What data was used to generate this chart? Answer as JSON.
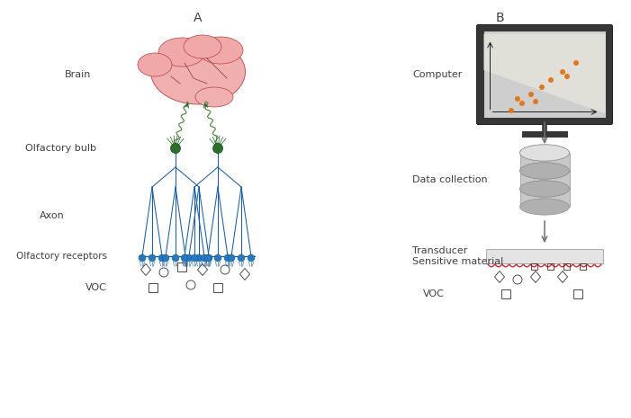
{
  "title_A": "A",
  "title_B": "B",
  "label_brain": "Brain",
  "label_olfactory_bulb": "Olfactory bulb",
  "label_axon": "Axon",
  "label_olfactory_receptors": "Olfactory receptors",
  "label_voc_A": "VOC",
  "label_computer": "Computer",
  "label_data_collection": "Data collection",
  "label_transducer": "Transducer",
  "label_sensitive_material": "Sensitive material",
  "label_voc_B": "VOC",
  "bg_color": "#ffffff",
  "text_color": "#404040",
  "neuron_blue": "#1a5fa0",
  "neuron_fill": "#2878c0",
  "bulb_green": "#2d6e2d",
  "nerve_green": "#5a8a4a",
  "arrow_green": "#2d6e2d",
  "sensor_red": "#c03030",
  "monitor_dark": "#383838",
  "data_dot_color": "#e07820",
  "database_gray": "#c0c0c0",
  "database_dark": "#909090",
  "arrow_gray": "#707070"
}
